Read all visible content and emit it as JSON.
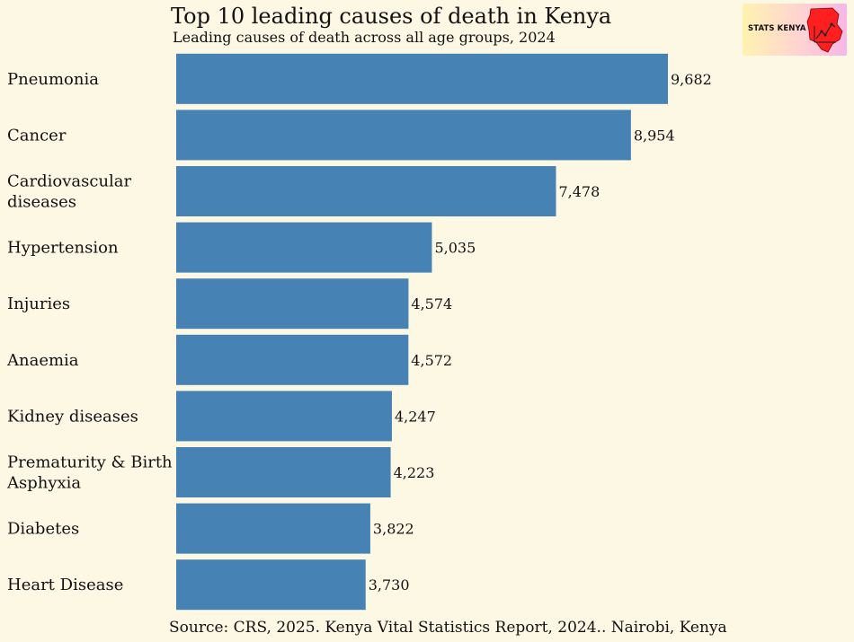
{
  "chart_data": {
    "type": "bar",
    "orientation": "horizontal",
    "title": "Top 10 leading causes of death in Kenya",
    "subtitle": "Leading causes of death across all age groups, 2024",
    "categories": [
      "Pneumonia",
      "Cancer",
      "Cardiovascular diseases",
      "Hypertension",
      "Injuries",
      "Anaemia",
      "Kidney diseases",
      "Prematurity & Birth Asphyxia",
      "Diabetes",
      "Heart Disease"
    ],
    "category_lines": [
      [
        "Pneumonia"
      ],
      [
        "Cancer"
      ],
      [
        "Cardiovascular",
        "diseases"
      ],
      [
        "Hypertension"
      ],
      [
        "Injuries"
      ],
      [
        "Anaemia"
      ],
      [
        "Kidney diseases"
      ],
      [
        "Prematurity & Birth",
        "Asphyxia"
      ],
      [
        "Diabetes"
      ],
      [
        "Heart Disease"
      ]
    ],
    "values": [
      9682,
      8954,
      7478,
      5035,
      4574,
      4572,
      4247,
      4223,
      3822,
      3730
    ],
    "value_labels": [
      "9,682",
      "8,954",
      "7,478",
      "5,035",
      "4,574",
      "4,572",
      "4,247",
      "4,223",
      "3,822",
      "3,730"
    ],
    "xlabel": "",
    "ylabel": "",
    "xlim": [
      0,
      9682
    ],
    "grid": false,
    "legend": "none",
    "bar_color": "#4682b4",
    "background_color": "#fdf8e4",
    "source": "Source: CRS, 2025. Kenya Vital Statistics Report, 2024.. Nairobi, Kenya"
  },
  "logo": {
    "text": "STATS KENYA",
    "icon": "kenya-map-icon",
    "map_color": "#ff1f1f"
  }
}
